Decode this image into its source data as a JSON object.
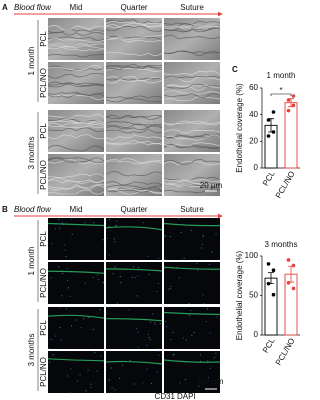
{
  "panel_a": {
    "label": "A",
    "flow": "Blood flow",
    "columns": [
      "Mid",
      "Quarter",
      "Suture"
    ],
    "groups": [
      {
        "label": "1 month",
        "rows": [
          "PCL",
          "PCL/NO"
        ]
      },
      {
        "label": "3 months",
        "rows": [
          "PCL",
          "PCL/NO"
        ]
      }
    ],
    "scale_bar": "20 µm"
  },
  "panel_b": {
    "label": "B",
    "flow": "Blood flow",
    "columns": [
      "Mid",
      "Quarter",
      "Suture"
    ],
    "groups": [
      {
        "label": "1 month",
        "rows": [
          "PCL",
          "PCL/NO"
        ]
      },
      {
        "label": "3 months",
        "rows": [
          "PCL",
          "PCL/NO"
        ]
      }
    ],
    "scale_bar": "100 µm",
    "stain": [
      "CD31",
      "DAPI"
    ]
  },
  "panel_c": {
    "label": "C",
    "y_label": "Endothelial coverage (%)",
    "charts": [
      {
        "type": "bar",
        "title": "1 month",
        "categories": [
          "PCL",
          "PCL/NO"
        ],
        "colors": [
          "#000000",
          "#e8413c"
        ],
        "values": [
          32,
          49
        ],
        "errors": [
          5,
          3
        ],
        "points": [
          [
            24,
            27,
            36,
            42
          ],
          [
            43,
            47,
            51,
            54
          ]
        ],
        "ylim": [
          0,
          60
        ],
        "yticks": [
          0,
          20,
          40,
          60
        ],
        "significance": "*"
      },
      {
        "type": "bar",
        "title": "3 months",
        "categories": [
          "PCL",
          "PCL/NO"
        ],
        "colors": [
          "#000000",
          "#e8413c"
        ],
        "values": [
          72,
          77
        ],
        "errors": [
          7,
          10
        ],
        "points": [
          [
            90,
            82,
            65,
            51
          ],
          [
            95,
            88,
            66,
            59
          ]
        ],
        "ylim": [
          0,
          100
        ],
        "yticks": [
          0,
          50,
          100
        ]
      }
    ]
  }
}
